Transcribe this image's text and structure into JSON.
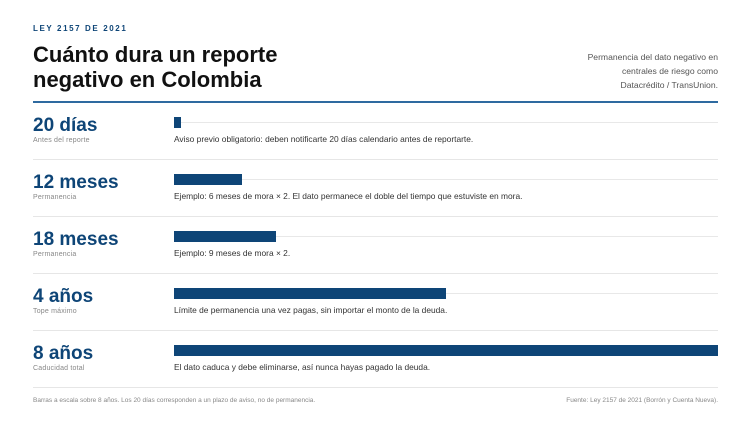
{
  "header": {
    "kicker": "LEY 2157 DE 2021",
    "title_lines": [
      "Cuánto dura un reporte",
      "negativo en Colombia"
    ],
    "subtitle_lines": [
      "Permanencia del dato negativo en",
      "centrales de riesgo como",
      "Datacrédito / TransUnion."
    ]
  },
  "chart_data": {
    "type": "bar",
    "orientation": "horizontal",
    "scale_max_months": 8,
    "colors": {
      "bar": "#0e4577",
      "accent_rule": "#2e6aa0"
    },
    "rows": [
      {
        "value_label": "20 días",
        "sublabel": "Antes del reporte",
        "months": 0.1,
        "description": "Aviso previo obligatorio: deben notificarte 20 días calendario antes de reportarte."
      },
      {
        "value_label": "12 meses",
        "sublabel": "Permanencia",
        "months": 1,
        "description": "Ejemplo: 6 meses de mora × 2. El dato permanece el doble del tiempo que estuviste en mora."
      },
      {
        "value_label": "18 meses",
        "sublabel": "Permanencia",
        "months": 1.5,
        "description": "Ejemplo: 9 meses de mora × 2."
      },
      {
        "value_label": "4 años",
        "sublabel": "Tope máximo",
        "months": 4,
        "description": "Límite de permanencia una vez pagas, sin importar el monto de la deuda."
      },
      {
        "value_label": "8 años",
        "sublabel": "Caducidad total",
        "months": 8,
        "description": "El dato caduca y debe eliminarse, así nunca hayas pagado la deuda."
      }
    ]
  },
  "footer": {
    "note": "Barras a escala sobre 8 años. Los 20 días corresponden a un plazo de aviso, no de permanencia.",
    "source": "Fuente: Ley 2157 de 2021 (Borrón y Cuenta Nueva)."
  }
}
